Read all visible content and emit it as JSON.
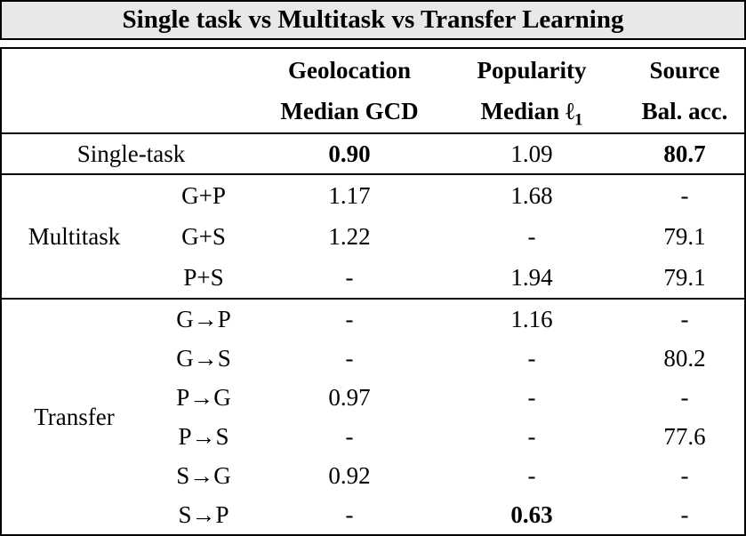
{
  "title": "Single task vs Multitask vs Transfer Learning",
  "header": {
    "columns": [
      {
        "line1": "Geolocation",
        "line2": "Median GCD"
      },
      {
        "line1": "Popularity",
        "line2": "Median ℓ",
        "line2_sub": "1"
      },
      {
        "line1": "Source",
        "line2": "Bal. acc."
      }
    ]
  },
  "sections": {
    "single": {
      "label": "Single-task",
      "geo": "0.90",
      "pop": "1.09",
      "src": "80.7"
    },
    "multitask": {
      "label": "Multitask",
      "rows": [
        {
          "sub": "G+P",
          "geo": "1.17",
          "pop": "1.68",
          "src": "-"
        },
        {
          "sub": "G+S",
          "geo": "1.22",
          "pop": "-",
          "src": "79.1"
        },
        {
          "sub": "P+S",
          "geo": "-",
          "pop": "1.94",
          "src": "79.1"
        }
      ]
    },
    "transfer": {
      "label": "Transfer",
      "rows": [
        {
          "sub": "G→P",
          "geo": "-",
          "pop": "1.16",
          "src": "-"
        },
        {
          "sub": "G→S",
          "geo": "-",
          "pop": "-",
          "src": "80.2"
        },
        {
          "sub": "P→G",
          "geo": "0.97",
          "pop": "-",
          "src": "-"
        },
        {
          "sub": "P→S",
          "geo": "-",
          "pop": "-",
          "src": "77.6"
        },
        {
          "sub": "S→G",
          "geo": "0.92",
          "pop": "-",
          "src": "-"
        },
        {
          "sub": "S→P",
          "geo": "-",
          "pop": "0.63",
          "src": "-"
        }
      ]
    }
  },
  "bold_values": [
    "0.90",
    "80.7",
    "0.63"
  ],
  "colors": {
    "title_background": "#e8e8e8",
    "table_background": "#ffffff",
    "border": "#000000",
    "text": "#000000"
  }
}
